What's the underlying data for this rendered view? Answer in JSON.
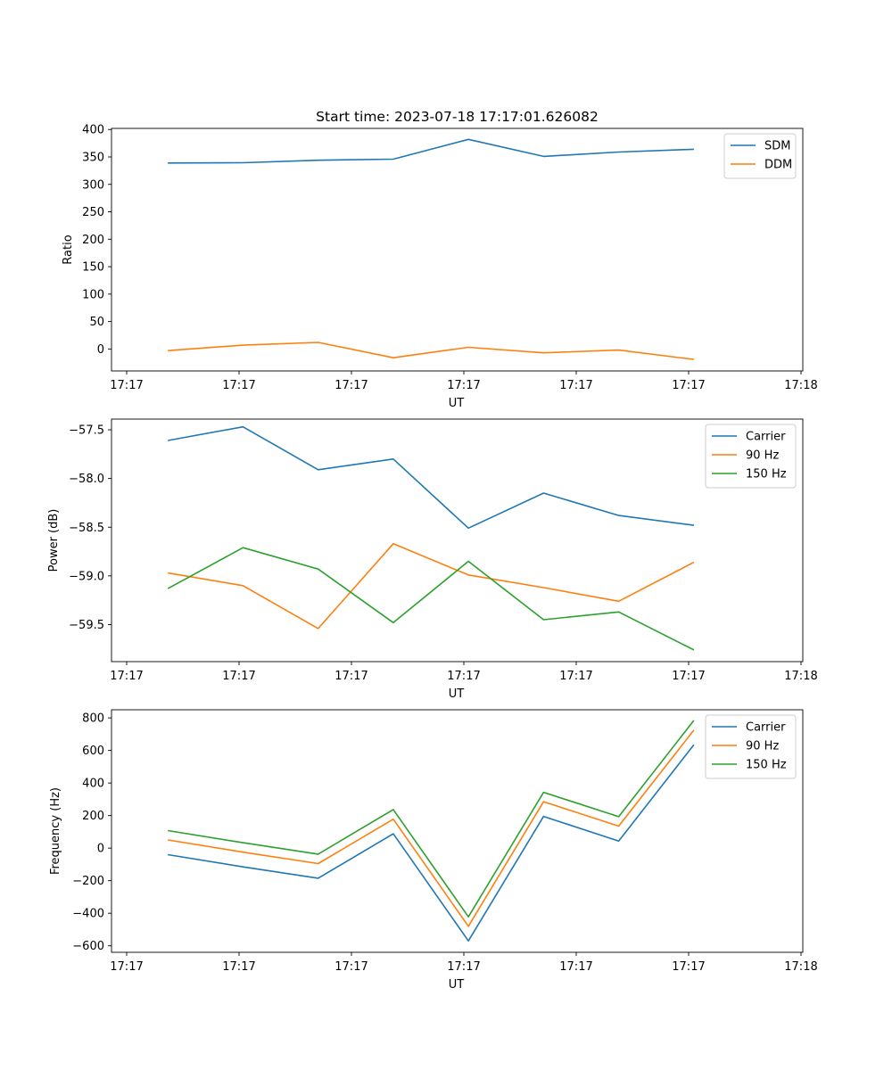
{
  "figure_title": "Start time: 2023-07-18 17:17:01.626082",
  "chart_data": [
    {
      "type": "line",
      "title": "Start time: 2023-07-18 17:17:01.626082",
      "xlabel": "UT",
      "ylabel": "Ratio",
      "x_tick_labels": [
        "17:17",
        "17:17",
        "17:17",
        "17:17",
        "17:17",
        "17:17",
        "17:18"
      ],
      "x_index_range": [
        -0.75,
        8.45
      ],
      "x": [
        0,
        1,
        2,
        3,
        4,
        5,
        6,
        7
      ],
      "ylim": [
        -40,
        402
      ],
      "yticks": [
        0,
        50,
        100,
        150,
        200,
        250,
        300,
        350,
        400
      ],
      "legend_position": "top-right",
      "series": [
        {
          "name": "SDM",
          "color": "#1f77b4",
          "values": [
            339,
            339.5,
            344,
            346,
            382,
            351,
            359,
            364
          ]
        },
        {
          "name": "DDM",
          "color": "#ff7f0e",
          "values": [
            -3,
            7,
            12,
            -16,
            3,
            -7,
            -2,
            -19
          ]
        }
      ]
    },
    {
      "type": "line",
      "xlabel": "UT",
      "ylabel": "Power (dB)",
      "x_tick_labels": [
        "17:17",
        "17:17",
        "17:17",
        "17:17",
        "17:17",
        "17:17",
        "17:18"
      ],
      "x_index_range": [
        -0.75,
        8.45
      ],
      "x": [
        0,
        1,
        2,
        3,
        4,
        5,
        6,
        7
      ],
      "ylim": [
        -59.88,
        -57.39
      ],
      "yticks": [
        -57.5,
        -58.0,
        -58.5,
        -59.0,
        -59.5
      ],
      "ytick_labels": [
        "−57.5",
        "−58.0",
        "−58.5",
        "−59.0",
        "−59.5"
      ],
      "legend_position": "top-right",
      "series": [
        {
          "name": "Carrier",
          "color": "#1f77b4",
          "values": [
            -57.61,
            -57.47,
            -57.91,
            -57.8,
            -58.51,
            -58.15,
            -58.38,
            -58.48
          ]
        },
        {
          "name": "90 Hz",
          "color": "#ff7f0e",
          "values": [
            -58.97,
            -59.1,
            -59.54,
            -58.67,
            -58.99,
            -59.12,
            -59.26,
            -58.86
          ]
        },
        {
          "name": "150 Hz",
          "color": "#2ca02c",
          "values": [
            -59.13,
            -58.71,
            -58.93,
            -59.48,
            -58.85,
            -59.45,
            -59.37,
            -59.76
          ]
        }
      ]
    },
    {
      "type": "line",
      "xlabel": "UT",
      "ylabel": "Frequency (Hz)",
      "x_tick_labels": [
        "17:17",
        "17:17",
        "17:17",
        "17:17",
        "17:17",
        "17:17",
        "17:18"
      ],
      "x_index_range": [
        -0.75,
        8.45
      ],
      "x": [
        0,
        1,
        2,
        3,
        4,
        5,
        6,
        7
      ],
      "ylim": [
        -640,
        850
      ],
      "yticks": [
        800,
        600,
        400,
        200,
        0,
        -200,
        -400,
        -600
      ],
      "ytick_labels": [
        "800",
        "600",
        "400",
        "200",
        "0",
        "−200",
        "−400",
        "−600"
      ],
      "legend_position": "top-right",
      "series": [
        {
          "name": "Carrier",
          "color": "#1f77b4",
          "values": [
            -40,
            -115,
            -185,
            88,
            -570,
            195,
            43,
            635
          ]
        },
        {
          "name": "90 Hz",
          "color": "#ff7f0e",
          "values": [
            50,
            -25,
            -95,
            178,
            -480,
            285,
            135,
            725
          ]
        },
        {
          "name": "150 Hz",
          "color": "#2ca02c",
          "values": [
            108,
            33,
            -37,
            237,
            -422,
            343,
            193,
            785
          ]
        }
      ]
    }
  ]
}
